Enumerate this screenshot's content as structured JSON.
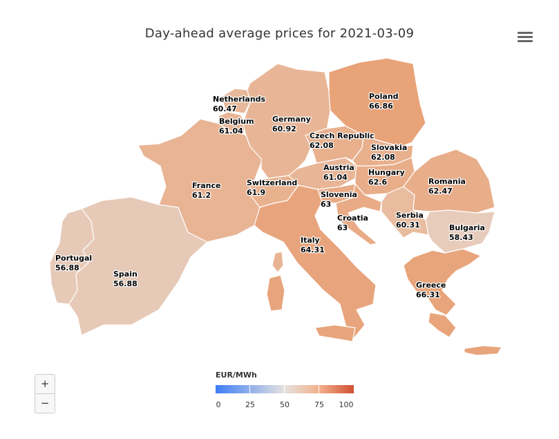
{
  "title": "Day-ahead average prices for 2021-03-09",
  "menu_icon": "hamburger-menu-icon",
  "colors": {
    "low": "#3d7ef5",
    "mid": "#e6e2df",
    "high": "#d24f34",
    "border": "#ffffff"
  },
  "legend": {
    "title": "EUR/MWh",
    "ticks": [
      "0",
      "25",
      "50",
      "75",
      "100"
    ],
    "range": [
      0,
      100
    ]
  },
  "zoom": {
    "in_label": "+",
    "out_label": "−"
  },
  "countries": [
    {
      "id": "portugal",
      "name": "Portugal",
      "value": "56.88",
      "color": "#e6c9b7"
    },
    {
      "id": "spain",
      "name": "Spain",
      "value": "56.88",
      "color": "#e6c9b7"
    },
    {
      "id": "france",
      "name": "France",
      "value": "61.2",
      "color": "#e8b494"
    },
    {
      "id": "belgium",
      "name": "Belgium",
      "value": "61.04",
      "color": "#e8b596"
    },
    {
      "id": "netherlands",
      "name": "Netherlands",
      "value": "60.47",
      "color": "#e8b89a"
    },
    {
      "id": "germany",
      "name": "Germany",
      "value": "60.92",
      "color": "#e8b697"
    },
    {
      "id": "switzerland",
      "name": "Switzerland",
      "value": "61.9",
      "color": "#e8b28f"
    },
    {
      "id": "italy",
      "name": "Italy",
      "value": "64.31",
      "color": "#e8a57d"
    },
    {
      "id": "czech",
      "name": "Czech Republic",
      "value": "62.08",
      "color": "#e8b08d"
    },
    {
      "id": "poland",
      "name": "Poland",
      "value": "66.86",
      "color": "#e9a378"
    },
    {
      "id": "slovakia",
      "name": "Slovakia",
      "value": "62.08",
      "color": "#e8b08d"
    },
    {
      "id": "austria",
      "name": "Austria",
      "value": "61.04",
      "color": "#e8b596"
    },
    {
      "id": "hungary",
      "name": "Hungary",
      "value": "62.6",
      "color": "#e8ad89"
    },
    {
      "id": "slovenia",
      "name": "Slovenia",
      "value": "63",
      "color": "#e8ab85"
    },
    {
      "id": "croatia",
      "name": "Croatia",
      "value": "63",
      "color": "#e8ab85"
    },
    {
      "id": "romania",
      "name": "Romania",
      "value": "62.47",
      "color": "#e8ae8a"
    },
    {
      "id": "serbia",
      "name": "Serbia",
      "value": "60.31",
      "color": "#e9bc9f"
    },
    {
      "id": "bulgaria",
      "name": "Bulgaria",
      "value": "58.43",
      "color": "#e8ccbb"
    },
    {
      "id": "greece",
      "name": "Greece",
      "value": "66.31",
      "color": "#e8a47a"
    }
  ]
}
